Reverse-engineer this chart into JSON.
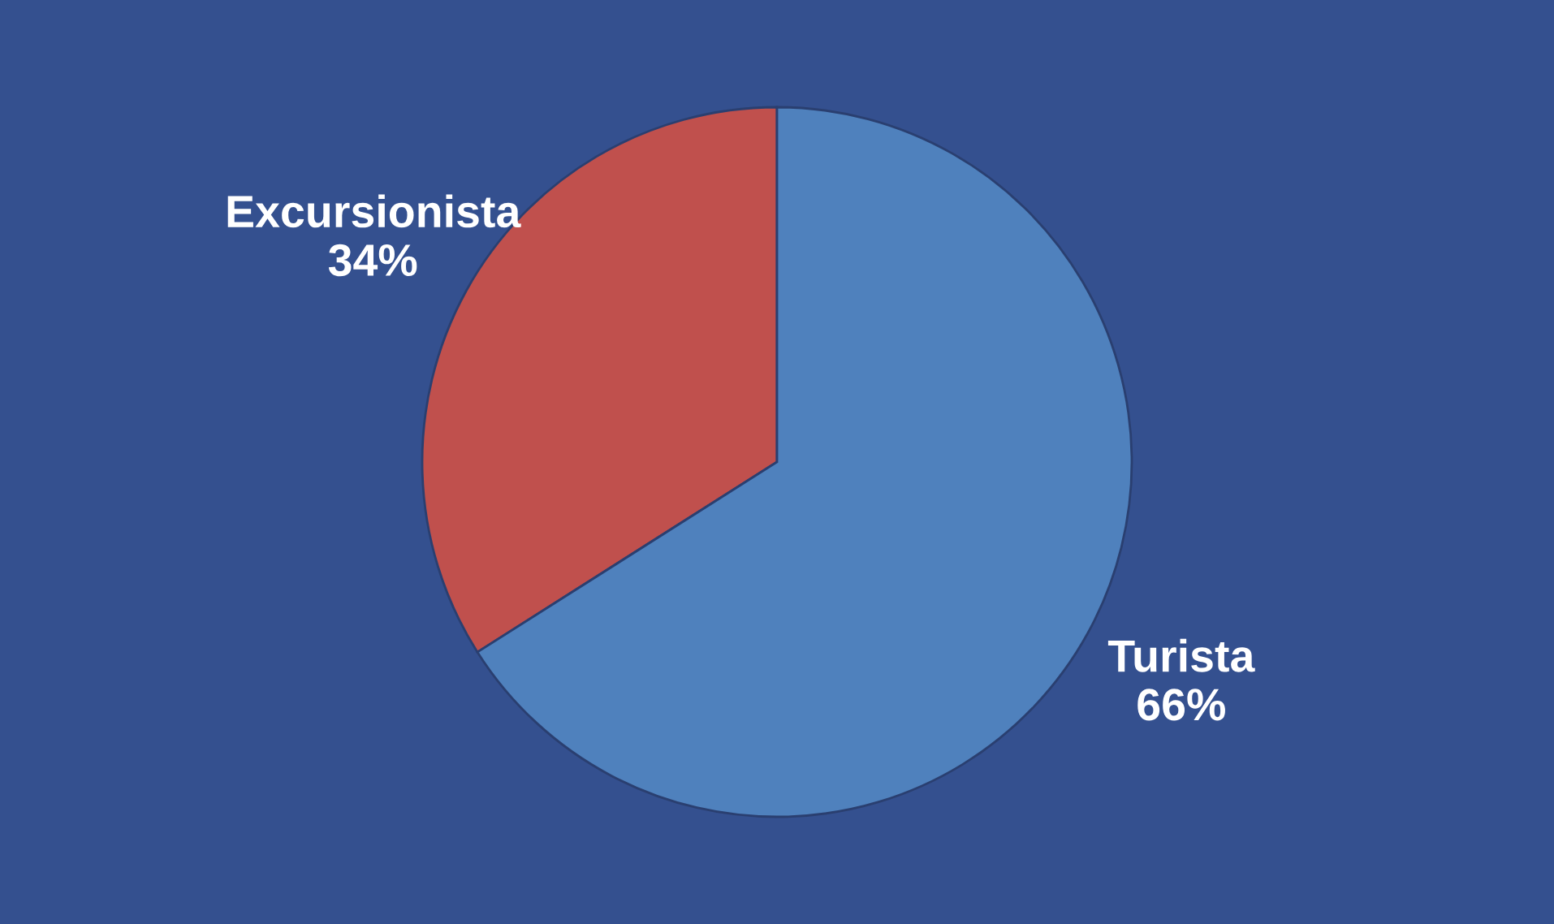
{
  "chart_data": {
    "type": "pie",
    "categories": [
      "Excursionista",
      "Turista"
    ],
    "values": [
      34,
      66
    ],
    "value_labels": [
      "34%",
      "66%"
    ],
    "colors": [
      "#c0504d",
      "#4f81bd"
    ]
  }
}
